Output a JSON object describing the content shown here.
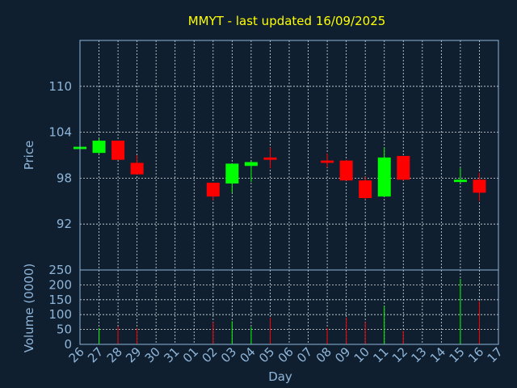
{
  "chart_data": [
    {
      "type": "candlestick",
      "title": "MMYT - last updated 16/09/2025",
      "xlabel": "",
      "ylabel": "Price",
      "ylim": [
        86,
        116
      ],
      "yticks": [
        92,
        98,
        104,
        110
      ],
      "grid": true,
      "colors": {
        "up": "#00ff00",
        "down": "#ff0000"
      },
      "categories": [
        "26",
        "27",
        "28",
        "29",
        "30",
        "31",
        "01",
        "02",
        "03",
        "04",
        "05",
        "06",
        "07",
        "08",
        "09",
        "10",
        "11",
        "12",
        "13",
        "14",
        "15",
        "16",
        "17"
      ],
      "candles": [
        {
          "x": "26",
          "open": 101.8,
          "high": 102.2,
          "low": 101.6,
          "close": 102.1
        },
        {
          "x": "27",
          "open": 101.3,
          "high": 103.2,
          "low": 101.2,
          "close": 102.9
        },
        {
          "x": "28",
          "open": 102.9,
          "high": 102.9,
          "low": 100.4,
          "close": 100.4
        },
        {
          "x": "29",
          "open": 100.0,
          "high": 101.0,
          "low": 98.5,
          "close": 98.5
        },
        {
          "x": "02",
          "open": 97.4,
          "high": 97.4,
          "low": 95.1,
          "close": 95.6
        },
        {
          "x": "03",
          "open": 97.3,
          "high": 99.9,
          "low": 96.1,
          "close": 99.9
        },
        {
          "x": "04",
          "open": 99.6,
          "high": 100.2,
          "low": 97.5,
          "close": 100.1
        },
        {
          "x": "05",
          "open": 100.7,
          "high": 102.0,
          "low": 99.3,
          "close": 100.4
        },
        {
          "x": "08",
          "open": 100.3,
          "high": 101.2,
          "low": 99.4,
          "close": 100.0
        },
        {
          "x": "09",
          "open": 100.3,
          "high": 100.4,
          "low": 97.7,
          "close": 97.7
        },
        {
          "x": "10",
          "open": 97.7,
          "high": 98.2,
          "low": 95.2,
          "close": 95.4
        },
        {
          "x": "11",
          "open": 95.6,
          "high": 102.0,
          "low": 95.6,
          "close": 100.7
        },
        {
          "x": "12",
          "open": 100.9,
          "high": 100.9,
          "low": 97.7,
          "close": 97.8
        },
        {
          "x": "15",
          "open": 97.5,
          "high": 99.3,
          "low": 97.4,
          "close": 97.8
        },
        {
          "x": "16",
          "open": 97.8,
          "high": 98.7,
          "low": 95.0,
          "close": 96.1
        }
      ]
    },
    {
      "type": "bar",
      "xlabel": "Day",
      "ylabel": "Volume (0000)",
      "ylim": [
        0,
        250
      ],
      "yticks": [
        0,
        50,
        100,
        150,
        200,
        250
      ],
      "grid": true,
      "categories": [
        "26",
        "27",
        "28",
        "29",
        "30",
        "31",
        "01",
        "02",
        "03",
        "04",
        "05",
        "06",
        "07",
        "08",
        "09",
        "10",
        "11",
        "12",
        "13",
        "14",
        "15",
        "16",
        "17"
      ],
      "bars": [
        {
          "x": "27",
          "value": 55,
          "color": "#00ff00"
        },
        {
          "x": "28",
          "value": 60,
          "color": "#ff0000"
        },
        {
          "x": "29",
          "value": 55,
          "color": "#ff0000"
        },
        {
          "x": "02",
          "value": 75,
          "color": "#ff0000"
        },
        {
          "x": "03",
          "value": 78,
          "color": "#00ff00"
        },
        {
          "x": "04",
          "value": 58,
          "color": "#00ff00"
        },
        {
          "x": "05",
          "value": 90,
          "color": "#ff0000"
        },
        {
          "x": "08",
          "value": 55,
          "color": "#ff0000"
        },
        {
          "x": "09",
          "value": 90,
          "color": "#ff0000"
        },
        {
          "x": "10",
          "value": 75,
          "color": "#ff0000"
        },
        {
          "x": "11",
          "value": 130,
          "color": "#00ff00"
        },
        {
          "x": "12",
          "value": 45,
          "color": "#ff0000"
        },
        {
          "x": "15",
          "value": 220,
          "color": "#00ff00"
        },
        {
          "x": "16",
          "value": 145,
          "color": "#ff0000"
        }
      ]
    }
  ]
}
